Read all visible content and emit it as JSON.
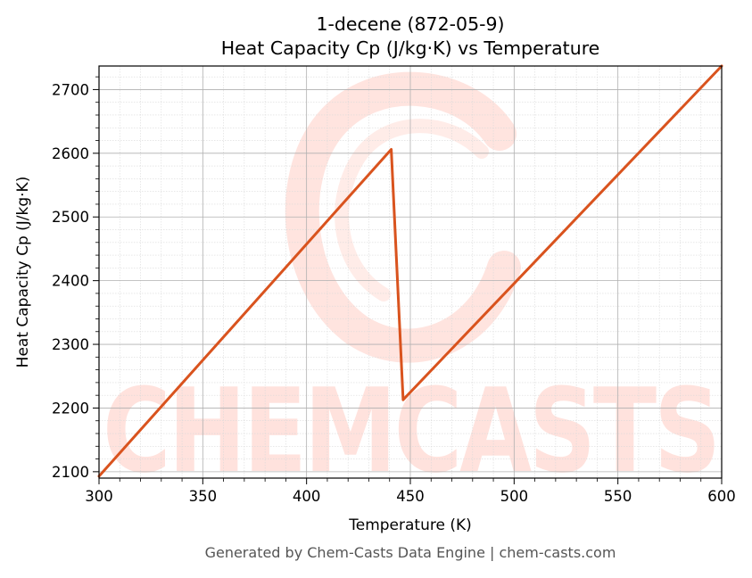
{
  "chart_data": {
    "type": "line",
    "title": "1-decene (872-05-9)",
    "subtitle": "Heat Capacity Cp (J/kg·K) vs Temperature",
    "xlabel": "Temperature (K)",
    "ylabel": "Heat Capacity Cp (J/kg·K)",
    "xlim": [
      300,
      600
    ],
    "ylim": [
      2090,
      2737
    ],
    "xticks": [
      300,
      350,
      400,
      450,
      500,
      550,
      600
    ],
    "yticks": [
      2100,
      2200,
      2300,
      2400,
      2500,
      2600,
      2700
    ],
    "grid": true,
    "series": [
      {
        "color": "#d9531e",
        "x": [
          300,
          440.8,
          446.5,
          600
        ],
        "y": [
          2093,
          2606,
          2213,
          2737
        ]
      }
    ]
  },
  "watermark": {
    "text": "CHEMCASTS",
    "color": "#ffd9d2"
  },
  "footer": {
    "text": "Generated by Chem-Casts Data Engine | chem-casts.com"
  }
}
